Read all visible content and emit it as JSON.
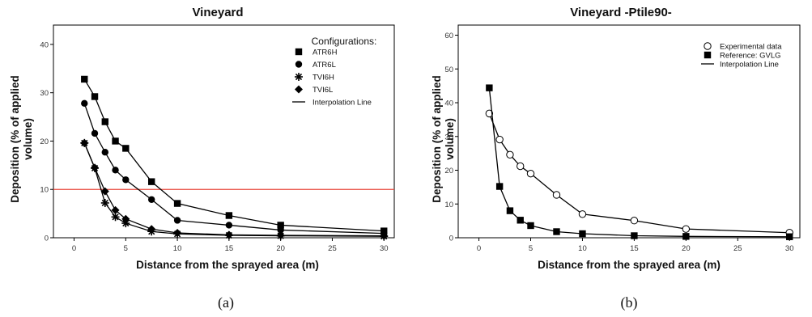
{
  "chart_data": [
    {
      "type": "line",
      "title": "Vineyard",
      "xlabel": "Distance from the sprayed area (m)",
      "ylabel_lines": [
        "Deposition (% of applied",
        "volume)"
      ],
      "xlim": [
        -2,
        31
      ],
      "ylim": [
        0,
        44
      ],
      "xticks": [
        0,
        5,
        10,
        15,
        20,
        25,
        30
      ],
      "yticks": [
        0,
        10,
        20,
        30,
        40
      ],
      "reference_line": {
        "y": 10,
        "color": "#e8473b"
      },
      "legend": {
        "title": "Configurations:",
        "placement": "top-right",
        "entries": [
          {
            "label": "ATR6H",
            "marker": "square"
          },
          {
            "label": "ATR6L",
            "marker": "circle"
          },
          {
            "label": "TVI6H",
            "marker": "asterisk"
          },
          {
            "label": "TVI6L",
            "marker": "diamond"
          },
          {
            "label": "Interpolation Line",
            "marker": "line"
          }
        ]
      },
      "series": [
        {
          "name": "ATR6H",
          "marker": "square",
          "x": [
            1,
            2,
            3,
            4,
            5,
            7.5,
            10,
            15,
            20,
            30
          ],
          "y": [
            32.8,
            29.2,
            24.0,
            20.0,
            18.5,
            11.6,
            7.1,
            4.6,
            2.6,
            1.4
          ]
        },
        {
          "name": "ATR6L",
          "marker": "circle",
          "x": [
            1,
            2,
            3,
            4,
            5,
            7.5,
            10,
            15,
            20,
            30
          ],
          "y": [
            27.8,
            21.6,
            17.7,
            14.0,
            12.0,
            7.9,
            3.6,
            2.6,
            1.6,
            0.9
          ]
        },
        {
          "name": "TVI6H",
          "marker": "asterisk",
          "x": [
            1,
            2,
            3,
            4,
            5,
            7.5,
            10,
            15,
            20,
            30
          ],
          "y": [
            19.6,
            14.4,
            7.2,
            4.3,
            3.0,
            1.3,
            0.8,
            0.5,
            0.4,
            0.3
          ]
        },
        {
          "name": "TVI6L",
          "marker": "diamond",
          "x": [
            1,
            2,
            3,
            4,
            5,
            7.5,
            10,
            15,
            20,
            30
          ],
          "y": [
            19.6,
            14.5,
            9.6,
            5.7,
            3.9,
            1.8,
            1.0,
            0.6,
            0.5,
            0.4
          ]
        }
      ],
      "caption": "(a)"
    },
    {
      "type": "line",
      "title": "Vineyard -Ptile90-",
      "xlabel": "Distance from the sprayed area (m)",
      "ylabel_lines": [
        "Deposition (% of applied",
        "volume)"
      ],
      "xlim": [
        -2,
        31
      ],
      "ylim": [
        0,
        63
      ],
      "xticks": [
        0,
        5,
        10,
        15,
        20,
        25,
        30
      ],
      "yticks": [
        0,
        10,
        20,
        30,
        40,
        50,
        60
      ],
      "legend": {
        "title": "",
        "placement": "top-right",
        "entries": [
          {
            "label": "Experimental data",
            "marker": "open-circle"
          },
          {
            "label": "Reference: GVLG",
            "marker": "square"
          },
          {
            "label": "Interpolation Line",
            "marker": "line"
          }
        ]
      },
      "series": [
        {
          "name": "Experimental data",
          "marker": "open-circle",
          "x": [
            1,
            2,
            3,
            4,
            5,
            7.5,
            10,
            15,
            20,
            30
          ],
          "y": [
            36.8,
            29.1,
            24.6,
            21.2,
            19.0,
            12.7,
            7.0,
            5.1,
            2.6,
            1.5
          ]
        },
        {
          "name": "Reference: GVLG",
          "marker": "square",
          "x": [
            1,
            2,
            3,
            4,
            5,
            7.5,
            10,
            15,
            20,
            30
          ],
          "y": [
            44.4,
            15.2,
            8.0,
            5.2,
            3.6,
            1.8,
            1.2,
            0.6,
            0.4,
            0.3
          ]
        }
      ],
      "caption": "(b)"
    }
  ]
}
